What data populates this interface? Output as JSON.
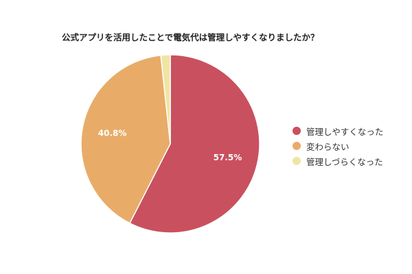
{
  "chart_data": {
    "type": "pie",
    "title": "公式アプリを活用したことで電気代は管理しやすくなりましたか？",
    "labels": [
      "管理しやすくなった",
      "変わらない",
      "管理しづらくなった"
    ],
    "values": [
      57.5,
      40.8,
      1.7
    ],
    "data_labels": [
      "57.5%",
      "40.8%",
      ""
    ],
    "colors": [
      "#c9505f",
      "#e8ac68",
      "#f1e4a4"
    ],
    "legend": "right"
  }
}
